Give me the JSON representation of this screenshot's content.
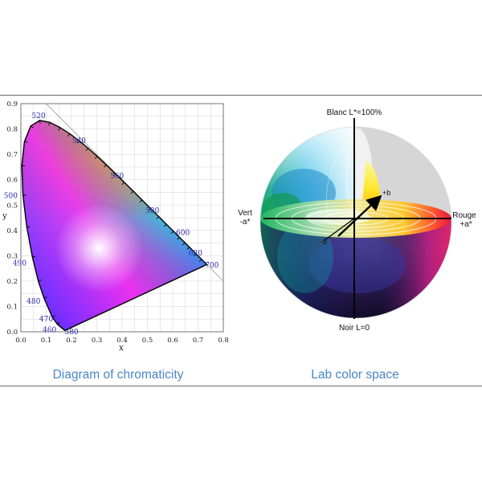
{
  "left_figure": {
    "caption": "Diagram of chromaticity",
    "x_axis_label": "x",
    "y_axis_label": "y",
    "x_ticks": [
      "0.0",
      "0.1",
      "0.2",
      "0.3",
      "0.4",
      "0.5",
      "0.6",
      "0.7",
      "0.8"
    ],
    "y_ticks": [
      "0.0",
      "0.1",
      "0.2",
      "0.3",
      "0.4",
      "0.5",
      "0.6",
      "0.7",
      "0.8",
      "0.9"
    ],
    "wavelength_labels": [
      {
        "text": "520",
        "x": 0.07,
        "y": 0.853
      },
      {
        "text": "540",
        "x": 0.23,
        "y": 0.754
      },
      {
        "text": "560",
        "x": 0.38,
        "y": 0.615
      },
      {
        "text": "580",
        "x": 0.52,
        "y": 0.479
      },
      {
        "text": "600",
        "x": 0.64,
        "y": 0.391
      },
      {
        "text": "620",
        "x": 0.69,
        "y": 0.31
      },
      {
        "text": "700",
        "x": 0.755,
        "y": 0.263
      },
      {
        "text": "500",
        "x": -0.04,
        "y": 0.538
      },
      {
        "text": "490",
        "x": -0.005,
        "y": 0.271
      },
      {
        "text": "480",
        "x": 0.05,
        "y": 0.12
      },
      {
        "text": "470",
        "x": 0.1,
        "y": 0.05
      },
      {
        "text": "460",
        "x": 0.113,
        "y": 0.008
      },
      {
        "text": "380",
        "x": 0.2,
        "y": 0.0
      }
    ],
    "spectral_locus": [
      [
        0.1741,
        0.005
      ],
      [
        0.144,
        0.0297
      ],
      [
        0.1241,
        0.0578
      ],
      [
        0.0913,
        0.1327
      ],
      [
        0.0687,
        0.2007
      ],
      [
        0.0454,
        0.295
      ],
      [
        0.0235,
        0.4127
      ],
      [
        0.0082,
        0.5384
      ],
      [
        0.0039,
        0.6548
      ],
      [
        0.0139,
        0.7502
      ],
      [
        0.0389,
        0.812
      ],
      [
        0.0743,
        0.8338
      ],
      [
        0.1142,
        0.8262
      ],
      [
        0.1547,
        0.8059
      ],
      [
        0.1929,
        0.7816
      ],
      [
        0.2296,
        0.7543
      ],
      [
        0.2658,
        0.7243
      ],
      [
        0.3016,
        0.6923
      ],
      [
        0.3373,
        0.6589
      ],
      [
        0.3731,
        0.6245
      ],
      [
        0.4087,
        0.5896
      ],
      [
        0.4441,
        0.5547
      ],
      [
        0.4788,
        0.5202
      ],
      [
        0.5125,
        0.4866
      ],
      [
        0.5448,
        0.4544
      ],
      [
        0.5752,
        0.4242
      ],
      [
        0.6029,
        0.3965
      ],
      [
        0.627,
        0.3725
      ],
      [
        0.6482,
        0.3514
      ],
      [
        0.6658,
        0.334
      ],
      [
        0.6915,
        0.3083
      ],
      [
        0.714,
        0.2859
      ],
      [
        0.7347,
        0.2653
      ]
    ]
  },
  "right_figure": {
    "caption": "Lab color space",
    "top_label": "Blanc L*=100%",
    "bottom_label": "Noir L=0",
    "left_label_line1": "Vert",
    "left_label_line2": "-a*",
    "right_label_line1": "Rouge",
    "right_label_line2": "+a*",
    "plus_b_label": "+b",
    "minus_b_label": "-b"
  },
  "colors": {
    "caption": "#4a86c8",
    "wavelength_label": "#2a2ab0",
    "rule": "#6b6b6b"
  }
}
